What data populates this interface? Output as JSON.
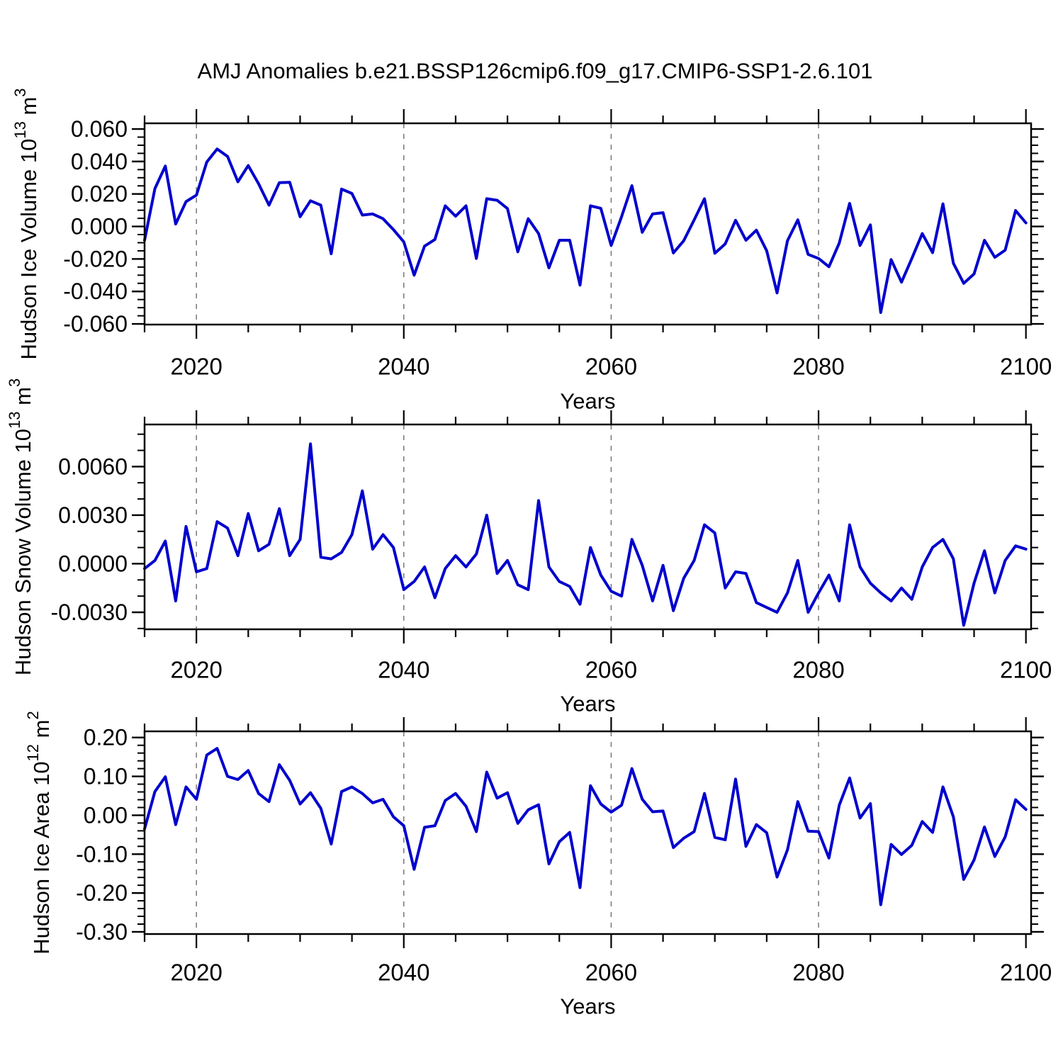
{
  "figure_title": "AMJ Anomalies b.e21.BSSP126cmip6.f09_g17.CMIP6-SSP1-2.6.101",
  "colors": {
    "line": "#0000cd",
    "grid": "#777777",
    "axis": "#000000",
    "background": "#ffffff",
    "text": "#000000"
  },
  "x_axis": {
    "label": "Years",
    "range_years": [
      2015,
      2100
    ],
    "major_ticks": [
      2020,
      2040,
      2060,
      2080,
      2100
    ],
    "major_tick_labels": [
      "2020",
      "2040",
      "2060",
      "2080",
      "2100"
    ],
    "minor_tick_step": 5,
    "gridline_years": [
      2020,
      2040,
      2060,
      2080
    ],
    "years": [
      2015,
      2016,
      2017,
      2018,
      2019,
      2020,
      2021,
      2022,
      2023,
      2024,
      2025,
      2026,
      2027,
      2028,
      2029,
      2030,
      2031,
      2032,
      2033,
      2034,
      2035,
      2036,
      2037,
      2038,
      2039,
      2040,
      2041,
      2042,
      2043,
      2044,
      2045,
      2046,
      2047,
      2048,
      2049,
      2050,
      2051,
      2052,
      2053,
      2054,
      2055,
      2056,
      2057,
      2058,
      2059,
      2060,
      2061,
      2062,
      2063,
      2064,
      2065,
      2066,
      2067,
      2068,
      2069,
      2070,
      2071,
      2072,
      2073,
      2074,
      2075,
      2076,
      2077,
      2078,
      2079,
      2080,
      2081,
      2082,
      2083,
      2084,
      2085,
      2086,
      2087,
      2088,
      2089,
      2090,
      2091,
      2092,
      2093,
      2094,
      2095,
      2096,
      2097,
      2098,
      2099,
      2100
    ]
  },
  "chart_data": [
    {
      "type": "line",
      "title": "",
      "xlabel": "Years",
      "ylabel_text": "Hudson Ice Volume 10^13 m^3",
      "ylabel_parts": [
        {
          "t": "Hudson Ice Volume 10",
          "sup": false
        },
        {
          "t": "13",
          "sup": true
        },
        {
          "t": " m",
          "sup": false
        },
        {
          "t": "3",
          "sup": true
        }
      ],
      "ylim": [
        -0.0604,
        0.0635
      ],
      "ytick_values": [
        0.06,
        0.04,
        0.02,
        0.0,
        -0.02,
        -0.04,
        -0.06
      ],
      "ytick_labels": [
        "0.060",
        "0.040",
        "0.020",
        "0.000",
        "-0.020",
        "-0.040",
        "-0.060"
      ],
      "y_minor_step": 0.005,
      "grid_on": true,
      "legend": "none",
      "values": [
        -0.0085,
        0.0233,
        0.0372,
        0.0015,
        0.0153,
        0.0193,
        0.0397,
        0.0477,
        0.0431,
        0.0275,
        0.0375,
        0.0263,
        0.0131,
        0.027,
        0.0272,
        0.006,
        0.0158,
        0.0131,
        -0.0168,
        0.023,
        0.0203,
        0.007,
        0.0077,
        0.0048,
        -0.002,
        -0.0095,
        -0.03,
        -0.0121,
        -0.008,
        0.0127,
        0.0063,
        0.0127,
        -0.0197,
        0.0171,
        0.0161,
        0.011,
        -0.0156,
        0.0048,
        -0.0044,
        -0.0255,
        -0.0085,
        -0.0085,
        -0.0361,
        0.0127,
        0.0112,
        -0.0117,
        0.006,
        0.0251,
        -0.0036,
        0.0077,
        0.0085,
        -0.0163,
        -0.0088,
        0.004,
        0.0171,
        -0.0165,
        -0.0107,
        0.0038,
        -0.0085,
        -0.0023,
        -0.015,
        -0.0409,
        -0.0088,
        0.0041,
        -0.0172,
        -0.0197,
        -0.0248,
        -0.0102,
        0.0142,
        -0.0117,
        0.001,
        -0.053,
        -0.0204,
        -0.0343,
        -0.0197,
        -0.0044,
        -0.0161,
        0.0139,
        -0.0226,
        -0.035,
        -0.0292,
        -0.0085,
        -0.019,
        -0.0146,
        0.0098,
        0.0022
      ]
    },
    {
      "type": "line",
      "title": "",
      "xlabel": "Years",
      "ylabel_text": "Hudson Snow Volume 10^13 m^3",
      "ylabel_parts": [
        {
          "t": "Hudson Snow Volume 10",
          "sup": false
        },
        {
          "t": "13",
          "sup": true
        },
        {
          "t": " m",
          "sup": false
        },
        {
          "t": "3",
          "sup": true
        }
      ],
      "ylim": [
        -0.00405,
        0.0086
      ],
      "ytick_values": [
        0.006,
        0.003,
        0.0,
        -0.003
      ],
      "ytick_labels": [
        "0.0060",
        "0.0030",
        "0.0000",
        "-0.0030"
      ],
      "y_minor_step": 0.001,
      "grid_on": true,
      "legend": "none",
      "values": [
        -0.0003,
        0.0002,
        0.0014,
        -0.0023,
        0.0023,
        -0.0005,
        -0.0003,
        0.0026,
        0.0022,
        0.0005,
        0.0031,
        0.0008,
        0.0012,
        0.0034,
        0.0005,
        0.0015,
        0.0074,
        0.0004,
        0.0003,
        0.0007,
        0.0018,
        0.0045,
        0.0009,
        0.0018,
        0.001,
        -0.0016,
        -0.0011,
        -0.0002,
        -0.0021,
        -0.0003,
        0.0005,
        -0.0002,
        0.0006,
        0.003,
        -0.0006,
        0.0002,
        -0.0013,
        -0.0016,
        0.0039,
        -0.0002,
        -0.0011,
        -0.0014,
        -0.0025,
        0.001,
        -0.0007,
        -0.0017,
        -0.002,
        0.0015,
        -0.0001,
        -0.0023,
        -0.0001,
        -0.0029,
        -0.0009,
        0.0002,
        0.0024,
        0.0019,
        -0.0015,
        -0.0005,
        -0.0006,
        -0.0024,
        -0.0027,
        -0.003,
        -0.0018,
        0.0002,
        -0.003,
        -0.0018,
        -0.0007,
        -0.0023,
        0.0024,
        -0.0002,
        -0.0012,
        -0.0018,
        -0.0023,
        -0.0015,
        -0.0022,
        -0.0002,
        0.001,
        0.0015,
        0.0003,
        -0.0038,
        -0.0012,
        0.0008,
        -0.0018,
        0.0002,
        0.0011,
        0.0009
      ]
    },
    {
      "type": "line",
      "title": "",
      "xlabel": "Years",
      "ylabel_text": "Hudson Ice Area 10^12 m^2",
      "ylabel_parts": [
        {
          "t": "Hudson Ice Area 10",
          "sup": false
        },
        {
          "t": "12",
          "sup": true
        },
        {
          "t": " m",
          "sup": false
        },
        {
          "t": "2",
          "sup": true
        }
      ],
      "ylim": [
        -0.3055,
        0.2159
      ],
      "ytick_values": [
        0.2,
        0.1,
        0.0,
        -0.1,
        -0.2,
        -0.3
      ],
      "ytick_labels": [
        "0.20",
        "0.10",
        "0.00",
        "-0.10",
        "-0.20",
        "-0.30"
      ],
      "y_minor_step": 0.02,
      "grid_on": true,
      "legend": "none",
      "values": [
        -0.035,
        0.061,
        0.099,
        -0.024,
        0.073,
        0.041,
        0.155,
        0.172,
        0.1,
        0.092,
        0.115,
        0.056,
        0.035,
        0.13,
        0.09,
        0.029,
        0.058,
        0.018,
        -0.074,
        0.061,
        0.073,
        0.056,
        0.032,
        0.041,
        -0.004,
        -0.027,
        -0.139,
        -0.031,
        -0.027,
        0.038,
        0.056,
        0.023,
        -0.042,
        0.111,
        0.044,
        0.058,
        -0.021,
        0.014,
        0.027,
        -0.125,
        -0.068,
        -0.044,
        -0.186,
        0.076,
        0.029,
        0.008,
        0.026,
        0.12,
        0.041,
        0.009,
        0.011,
        -0.083,
        -0.059,
        -0.042,
        0.056,
        -0.057,
        -0.063,
        0.093,
        -0.08,
        -0.024,
        -0.045,
        -0.159,
        -0.089,
        0.035,
        -0.041,
        -0.042,
        -0.11,
        0.026,
        0.096,
        -0.007,
        0.03,
        -0.23,
        -0.075,
        -0.101,
        -0.077,
        -0.016,
        -0.044,
        0.073,
        -0.004,
        -0.165,
        -0.115,
        -0.03,
        -0.106,
        -0.056,
        0.04,
        0.015
      ]
    }
  ]
}
